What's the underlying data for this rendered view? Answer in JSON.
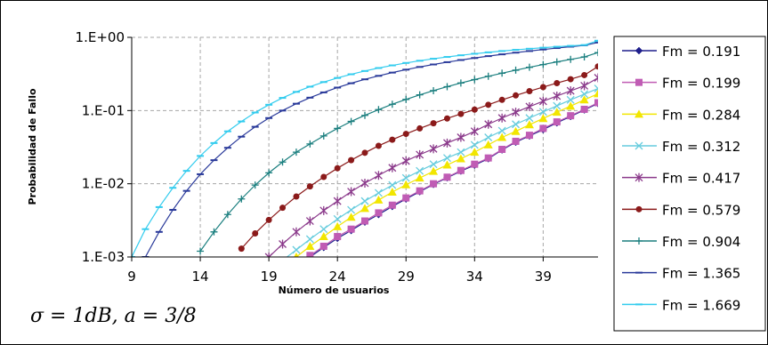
{
  "chart_data": {
    "type": "line",
    "xlabel": "Número de usuarios",
    "ylabel": "Probabilidad de Fallo",
    "annotation": "σ = 1dB, a = 3/8",
    "y_scale": "log",
    "xlim": [
      9,
      43
    ],
    "ylim": [
      0.001,
      1
    ],
    "x_ticks": [
      "9",
      "14",
      "19",
      "24",
      "29",
      "34",
      "39"
    ],
    "y_ticks": [
      "1.E+00",
      "1.E-01",
      "1.E-02",
      "1.E-03"
    ],
    "grid": true,
    "legend_position": "right",
    "series": [
      {
        "name": "Fm = 0.191",
        "color": "#1f1f8c",
        "marker": "diamond",
        "x": [
          22,
          23,
          24,
          25,
          26,
          27,
          28,
          29,
          30,
          31,
          32,
          33,
          34,
          35,
          36,
          37,
          38,
          39,
          40,
          41,
          42,
          43
        ],
        "y": [
          0.001,
          0.00135,
          0.0018,
          0.0023,
          0.003,
          0.0038,
          0.0049,
          0.0062,
          0.0078,
          0.0098,
          0.0121,
          0.0149,
          0.018,
          0.022,
          0.029,
          0.037,
          0.045,
          0.055,
          0.068,
          0.083,
          0.102,
          0.125
        ]
      },
      {
        "name": "Fm = 0.199",
        "color": "#c05cb4",
        "marker": "square",
        "x": [
          22,
          23,
          24,
          25,
          26,
          27,
          28,
          29,
          30,
          31,
          32,
          33,
          34,
          35,
          36,
          37,
          38,
          39,
          40,
          41,
          42,
          43
        ],
        "y": [
          0.00105,
          0.0014,
          0.0019,
          0.0024,
          0.0031,
          0.004,
          0.0051,
          0.0064,
          0.008,
          0.01,
          0.0123,
          0.0152,
          0.0185,
          0.0225,
          0.0295,
          0.038,
          0.046,
          0.057,
          0.07,
          0.085,
          0.104,
          0.128
        ]
      },
      {
        "name": "Fm = 0.284",
        "color": "#f2e600",
        "marker": "triangle",
        "x": [
          21,
          22,
          23,
          24,
          25,
          26,
          27,
          28,
          29,
          30,
          31,
          32,
          33,
          34,
          35,
          36,
          37,
          38,
          39,
          40,
          41,
          42,
          43
        ],
        "y": [
          0.001,
          0.0014,
          0.0019,
          0.0026,
          0.0035,
          0.0046,
          0.006,
          0.0077,
          0.0097,
          0.012,
          0.0148,
          0.0181,
          0.022,
          0.027,
          0.034,
          0.043,
          0.052,
          0.064,
          0.078,
          0.095,
          0.115,
          0.14,
          0.17
        ]
      },
      {
        "name": "Fm = 0.312",
        "color": "#66ccdd",
        "marker": "x",
        "x": [
          20,
          21,
          22,
          23,
          24,
          25,
          26,
          27,
          28,
          29,
          30,
          31,
          32,
          33,
          34,
          35,
          36,
          37,
          38,
          39,
          40,
          41,
          42,
          43
        ],
        "y": [
          0.0009,
          0.00125,
          0.00175,
          0.0024,
          0.0033,
          0.0044,
          0.0058,
          0.0075,
          0.0096,
          0.012,
          0.015,
          0.0185,
          0.0225,
          0.027,
          0.034,
          0.043,
          0.053,
          0.065,
          0.079,
          0.096,
          0.116,
          0.14,
          0.168,
          0.2
        ]
      },
      {
        "name": "Fm = 0.417",
        "color": "#8b3a8b",
        "marker": "star",
        "x": [
          19,
          20,
          21,
          22,
          23,
          24,
          25,
          26,
          27,
          28,
          29,
          30,
          31,
          32,
          33,
          34,
          35,
          36,
          37,
          38,
          39,
          40,
          41,
          42,
          43
        ],
        "y": [
          0.001,
          0.0015,
          0.0022,
          0.0031,
          0.0043,
          0.0058,
          0.0078,
          0.0102,
          0.013,
          0.0165,
          0.0205,
          0.025,
          0.03,
          0.036,
          0.043,
          0.052,
          0.065,
          0.079,
          0.095,
          0.113,
          0.134,
          0.158,
          0.186,
          0.218,
          0.28
        ]
      },
      {
        "name": "Fm = 0.579",
        "color": "#8b1a1a",
        "marker": "circle",
        "x": [
          17,
          18,
          19,
          20,
          21,
          22,
          23,
          24,
          25,
          26,
          27,
          28,
          29,
          30,
          31,
          32,
          33,
          34,
          35,
          36,
          37,
          38,
          39,
          40,
          41,
          42,
          43
        ],
        "y": [
          0.0013,
          0.0021,
          0.0032,
          0.0047,
          0.0067,
          0.0092,
          0.0124,
          0.0163,
          0.021,
          0.0265,
          0.033,
          0.04,
          0.048,
          0.057,
          0.067,
          0.078,
          0.09,
          0.103,
          0.12,
          0.14,
          0.161,
          0.184,
          0.209,
          0.237,
          0.268,
          0.305,
          0.4
        ]
      },
      {
        "name": "Fm = 0.904",
        "color": "#1b7f7f",
        "marker": "plus",
        "x": [
          14,
          15,
          16,
          17,
          18,
          19,
          20,
          21,
          22,
          23,
          24,
          25,
          26,
          27,
          28,
          29,
          30,
          31,
          32,
          33,
          34,
          35,
          36,
          37,
          38,
          39,
          40,
          41,
          42,
          43
        ],
        "y": [
          0.0012,
          0.0022,
          0.0038,
          0.0062,
          0.0096,
          0.0141,
          0.0198,
          0.027,
          0.035,
          0.045,
          0.057,
          0.071,
          0.086,
          0.103,
          0.122,
          0.142,
          0.164,
          0.187,
          0.212,
          0.238,
          0.265,
          0.294,
          0.324,
          0.356,
          0.39,
          0.425,
          0.462,
          0.5,
          0.54,
          0.62
        ]
      },
      {
        "name": "Fm = 1.365",
        "color": "#2a3a9a",
        "marker": "dash",
        "x": [
          10,
          11,
          12,
          13,
          14,
          15,
          16,
          17,
          18,
          19,
          20,
          21,
          22,
          23,
          24,
          25,
          26,
          27,
          28,
          29,
          30,
          31,
          32,
          33,
          34,
          35,
          36,
          37,
          38,
          39,
          40,
          41,
          42,
          43
        ],
        "y": [
          0.001,
          0.0022,
          0.0044,
          0.008,
          0.0135,
          0.021,
          0.031,
          0.044,
          0.06,
          0.079,
          0.1,
          0.124,
          0.15,
          0.177,
          0.206,
          0.236,
          0.267,
          0.298,
          0.33,
          0.362,
          0.394,
          0.426,
          0.458,
          0.49,
          0.522,
          0.554,
          0.586,
          0.618,
          0.65,
          0.682,
          0.714,
          0.746,
          0.778,
          0.85
        ]
      },
      {
        "name": "Fm = 1.669",
        "color": "#33ccee",
        "marker": "dash",
        "x": [
          9,
          10,
          11,
          12,
          13,
          14,
          15,
          16,
          17,
          18,
          19,
          20,
          21,
          22,
          23,
          24,
          25,
          26,
          27,
          28,
          29,
          30,
          31,
          32,
          33,
          34,
          35,
          36,
          37,
          38,
          39,
          40,
          41,
          42,
          43
        ],
        "y": [
          0.001,
          0.0024,
          0.0048,
          0.0088,
          0.015,
          0.024,
          0.036,
          0.052,
          0.071,
          0.094,
          0.12,
          0.149,
          0.18,
          0.212,
          0.245,
          0.279,
          0.313,
          0.347,
          0.381,
          0.414,
          0.447,
          0.479,
          0.51,
          0.54,
          0.569,
          0.597,
          0.624,
          0.65,
          0.675,
          0.699,
          0.722,
          0.744,
          0.765,
          0.785,
          0.9
        ]
      }
    ]
  }
}
